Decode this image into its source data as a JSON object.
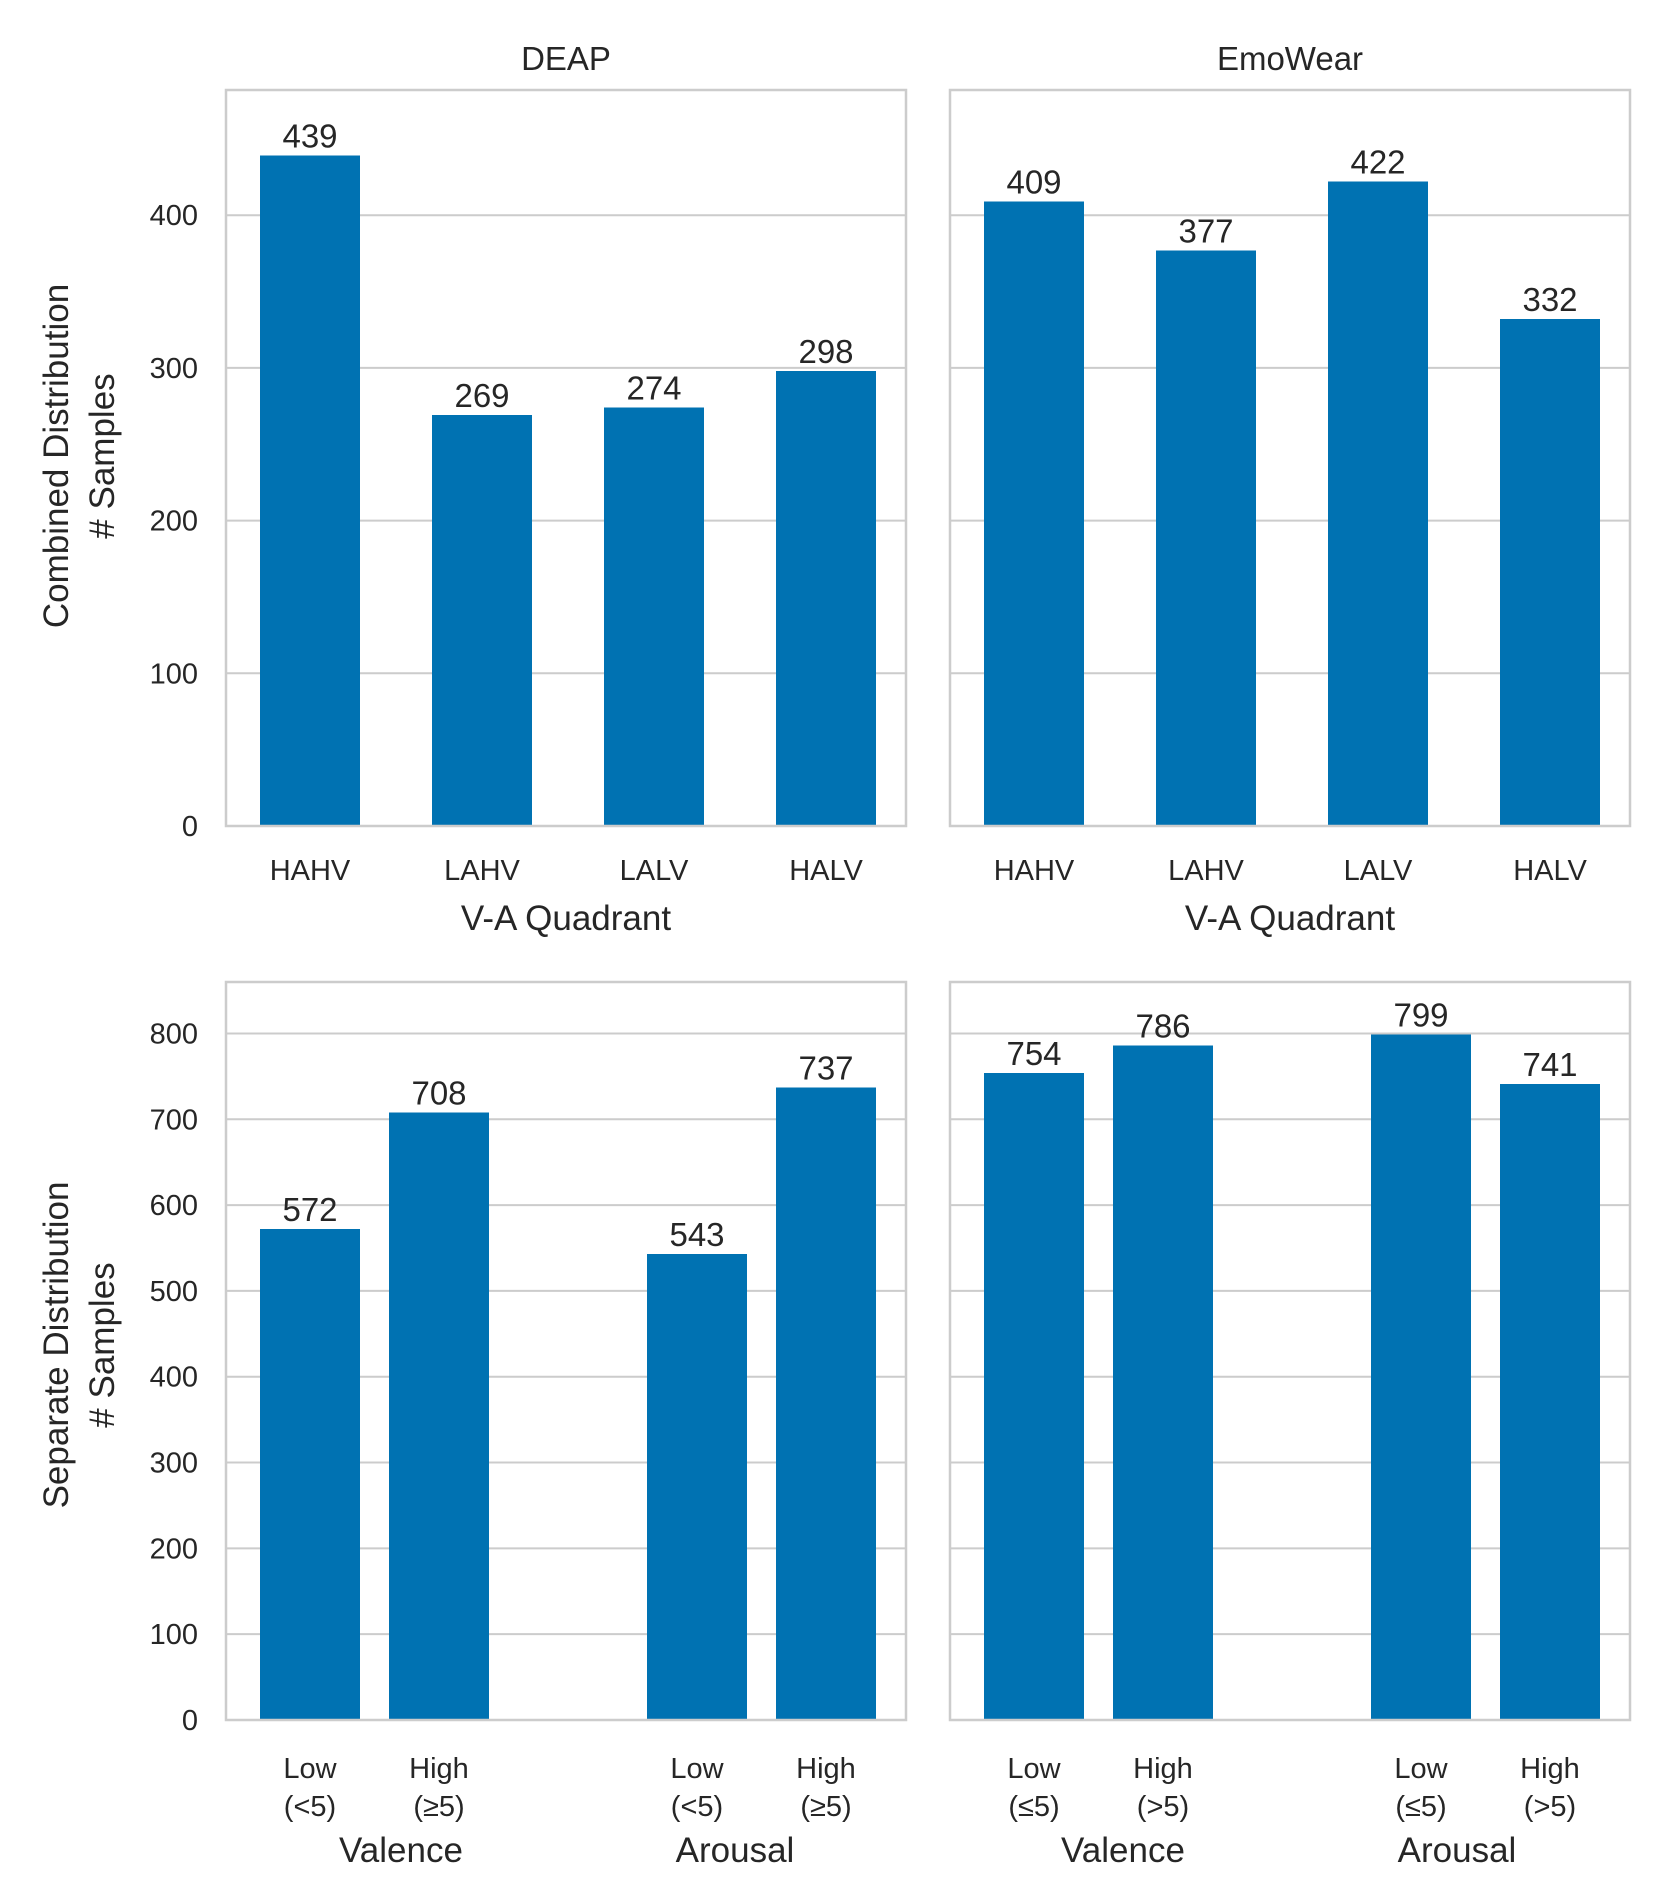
{
  "colors": {
    "bar": "#0072B2",
    "text": "#262626",
    "grid": "#cccccc"
  },
  "chart_data": [
    {
      "type": "bar",
      "row": "combined",
      "title": "DEAP",
      "xlabel": "V-A Quadrant",
      "ylabel": [
        "Combined Distribution",
        "# Samples"
      ],
      "ylim": [
        0,
        482
      ],
      "yticks": [
        "0",
        "100",
        "200",
        "300",
        "400"
      ],
      "categories": [
        "HAHV",
        "LAHV",
        "LALV",
        "HALV"
      ],
      "values": [
        439,
        269,
        274,
        298
      ],
      "value_labels": [
        "439",
        "269",
        "274",
        "298"
      ]
    },
    {
      "type": "bar",
      "row": "combined",
      "title": "EmoWear",
      "xlabel": "V-A Quadrant",
      "categories": [
        "HAHV",
        "LAHV",
        "LALV",
        "HALV"
      ],
      "values": [
        409,
        377,
        422,
        332
      ],
      "value_labels": [
        "409",
        "377",
        "422",
        "332"
      ]
    },
    {
      "type": "bar",
      "row": "separate",
      "title": "",
      "ylabel": [
        "Separate Distribution",
        "# Samples"
      ],
      "ylim": [
        0,
        860
      ],
      "yticks": [
        "0",
        "100",
        "200",
        "300",
        "400",
        "500",
        "600",
        "700",
        "800"
      ],
      "groups": [
        "Valence",
        "Arousal"
      ],
      "categories": [
        [
          "Low",
          "(<5)"
        ],
        [
          "High",
          "(≥5)"
        ],
        [
          "Low",
          "(<5)"
        ],
        [
          "High",
          "(≥5)"
        ]
      ],
      "values": [
        572,
        708,
        543,
        737
      ],
      "value_labels": [
        "572",
        "708",
        "543",
        "737"
      ]
    },
    {
      "type": "bar",
      "row": "separate",
      "title": "",
      "groups": [
        "Valence",
        "Arousal"
      ],
      "categories": [
        [
          "Low",
          "(≤5)"
        ],
        [
          "High",
          "(>5)"
        ],
        [
          "Low",
          "(≤5)"
        ],
        [
          "High",
          "(>5)"
        ]
      ],
      "values": [
        754,
        786,
        799,
        741
      ],
      "value_labels": [
        "754",
        "786",
        "799",
        "741"
      ]
    }
  ]
}
